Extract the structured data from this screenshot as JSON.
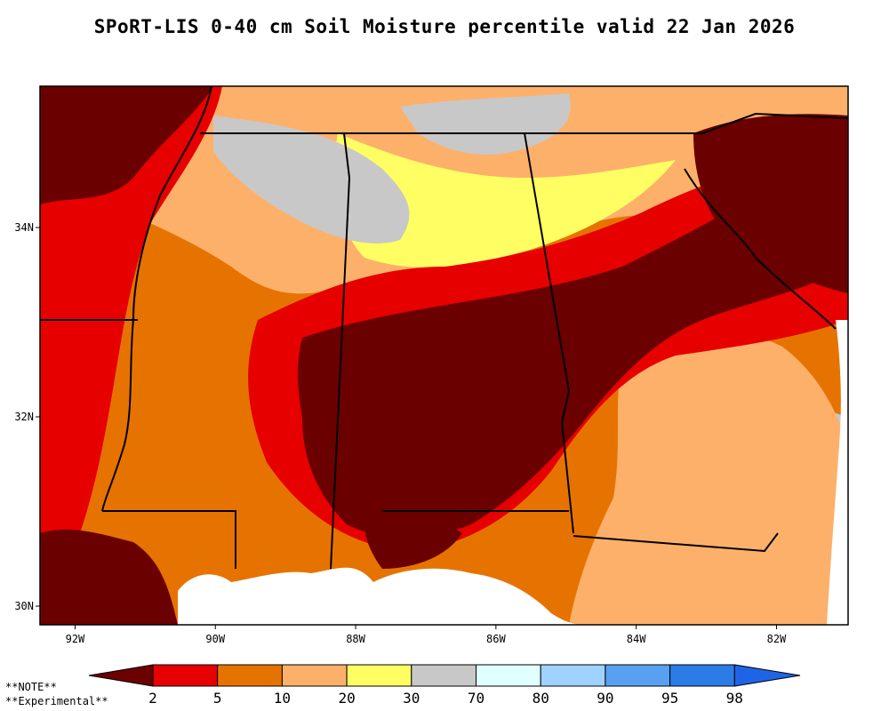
{
  "title": "SPoRT-LIS 0-40 cm Soil Moisture percentile valid 22 Jan 2026",
  "map": {
    "lon_range": [
      -92.5,
      -81.0
    ],
    "lat_range": [
      29.8,
      35.5
    ],
    "lon_ticks": [
      "92W",
      "90W",
      "88W",
      "86W",
      "84W",
      "82W"
    ],
    "lat_ticks": [
      "34N",
      "32N",
      "30N"
    ]
  },
  "legend": {
    "thresholds": [
      "2",
      "5",
      "10",
      "20",
      "30",
      "70",
      "80",
      "90",
      "95",
      "98"
    ],
    "colors": [
      "#6b0000",
      "#e60000",
      "#e67300",
      "#fdb06a",
      "#ffff64",
      "#c8c8c8",
      "#e0ffff",
      "#a0d2ff",
      "#5aa0f0",
      "#2b7ce6",
      "#1e64e6"
    ]
  },
  "notes": [
    "**NOTE**",
    "**Experimental**"
  ],
  "colors": {
    "below_2": "#6b0000",
    "p2_5": "#e60000",
    "p5_10": "#e67300",
    "p10_20": "#fdb06a",
    "p20_30": "#ffff64",
    "p30_70": "#c8c8c8",
    "p70_80": "#e0ffff",
    "p80_90": "#a0d2ff",
    "p90_95": "#5aa0f0",
    "p95_98": "#2b7ce6",
    "water": "#ffffff"
  }
}
